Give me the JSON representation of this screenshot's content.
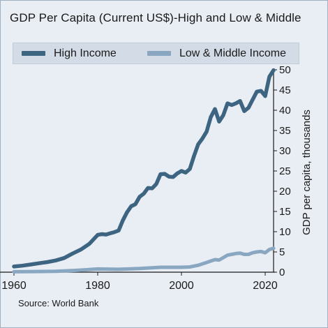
{
  "chart_data": {
    "type": "line",
    "title": "GDP Per Capita (Current US$)-High and Low & Middle",
    "xlabel": "",
    "ylabel": "GDP per capita, thousands",
    "xlim": [
      1960,
      2022
    ],
    "ylim": [
      0,
      50
    ],
    "x_ticks": [
      1960,
      1980,
      2000,
      2020
    ],
    "y_ticks": [
      0,
      5,
      10,
      15,
      20,
      25,
      30,
      35,
      40,
      45,
      50
    ],
    "grid": false,
    "legend_position": "top",
    "series": [
      {
        "name": "High Income",
        "color": "#3d6480",
        "x": [
          1960,
          1962,
          1964,
          1966,
          1968,
          1970,
          1972,
          1974,
          1976,
          1978,
          1980,
          1981,
          1982,
          1983,
          1984,
          1985,
          1986,
          1987,
          1988,
          1989,
          1990,
          1991,
          1992,
          1993,
          1994,
          1995,
          1996,
          1997,
          1998,
          1999,
          2000,
          2001,
          2002,
          2003,
          2004,
          2005,
          2006,
          2007,
          2008,
          2009,
          2010,
          2011,
          2012,
          2013,
          2014,
          2015,
          2016,
          2017,
          2018,
          2019,
          2020,
          2021,
          2022
        ],
        "values": [
          1.4,
          1.6,
          1.9,
          2.2,
          2.5,
          2.9,
          3.5,
          4.6,
          5.6,
          7.0,
          9.2,
          9.4,
          9.3,
          9.6,
          9.9,
          10.3,
          12.8,
          14.8,
          16.3,
          16.8,
          18.6,
          19.4,
          20.8,
          20.7,
          21.8,
          24.2,
          24.3,
          23.6,
          23.5,
          24.4,
          25.0,
          24.6,
          25.5,
          28.7,
          31.6,
          33.0,
          34.7,
          38.3,
          40.3,
          37.2,
          38.8,
          41.7,
          41.3,
          41.7,
          42.3,
          39.8,
          40.6,
          42.6,
          44.6,
          44.8,
          43.5,
          48.3,
          49.9
        ]
      },
      {
        "name": "Low & Middle Income",
        "color": "#8aa7c2",
        "x": [
          1960,
          1965,
          1970,
          1975,
          1980,
          1985,
          1990,
          1995,
          2000,
          2002,
          2004,
          2006,
          2008,
          2009,
          2010,
          2011,
          2012,
          2013,
          2014,
          2015,
          2016,
          2017,
          2018,
          2019,
          2020,
          2021,
          2022
        ],
        "values": [
          0.1,
          0.15,
          0.2,
          0.45,
          0.8,
          0.7,
          0.9,
          1.2,
          1.2,
          1.3,
          1.7,
          2.4,
          3.1,
          3.0,
          3.6,
          4.2,
          4.4,
          4.6,
          4.7,
          4.4,
          4.4,
          4.8,
          5.0,
          5.1,
          4.8,
          5.6,
          5.9
        ]
      }
    ]
  },
  "source_text": "Source: World Bank"
}
